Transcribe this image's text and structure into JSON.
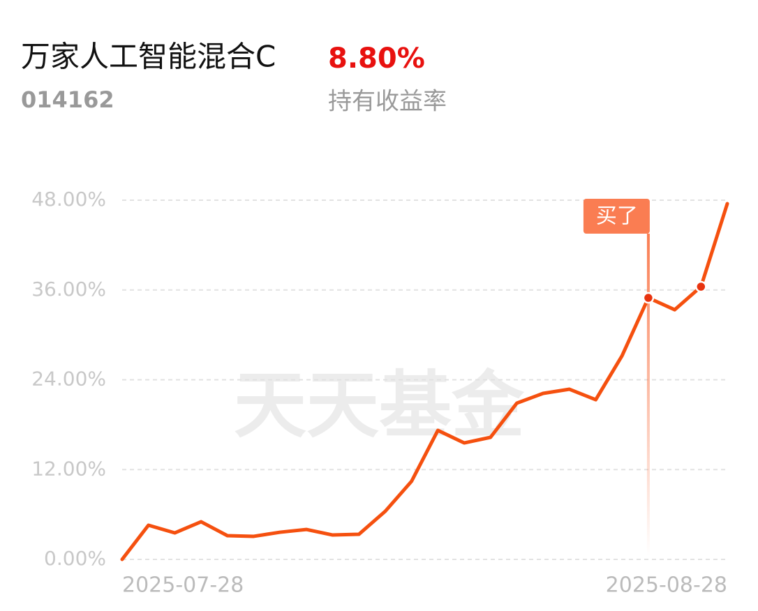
{
  "header": {
    "title": "万家人工智能混合C",
    "code": "014162",
    "return_value": "8.80%",
    "return_label": "持有收益率"
  },
  "chart_data": {
    "type": "line",
    "watermark": "天天基金",
    "categories": [
      "2025-07-28",
      null,
      null,
      null,
      null,
      null,
      null,
      null,
      null,
      null,
      null,
      null,
      null,
      null,
      null,
      null,
      null,
      null,
      null,
      null,
      null,
      null,
      null,
      "2025-08-28"
    ],
    "series": [
      {
        "color": "#f5500f",
        "values": [
          0,
          4.57,
          3.54,
          5.03,
          3.17,
          3.08,
          3.63,
          4.0,
          3.26,
          3.36,
          6.43,
          10.44,
          17.24,
          15.56,
          16.31,
          20.88,
          22.18,
          22.74,
          21.34,
          27.21,
          34.95,
          33.36,
          36.44,
          47.53
        ]
      }
    ],
    "ylim": [
      0,
      48
    ],
    "yticks": [
      {
        "value": 0,
        "label": "0.00%"
      },
      {
        "value": 12,
        "label": "12.00%"
      },
      {
        "value": 24,
        "label": "24.00%"
      },
      {
        "value": 36,
        "label": "36.00%"
      },
      {
        "value": 48,
        "label": "48.00%"
      }
    ],
    "grid": true,
    "markers": [
      20,
      22
    ],
    "annotation": {
      "label": "买了",
      "index": 20,
      "color": "#fa7d52"
    }
  }
}
